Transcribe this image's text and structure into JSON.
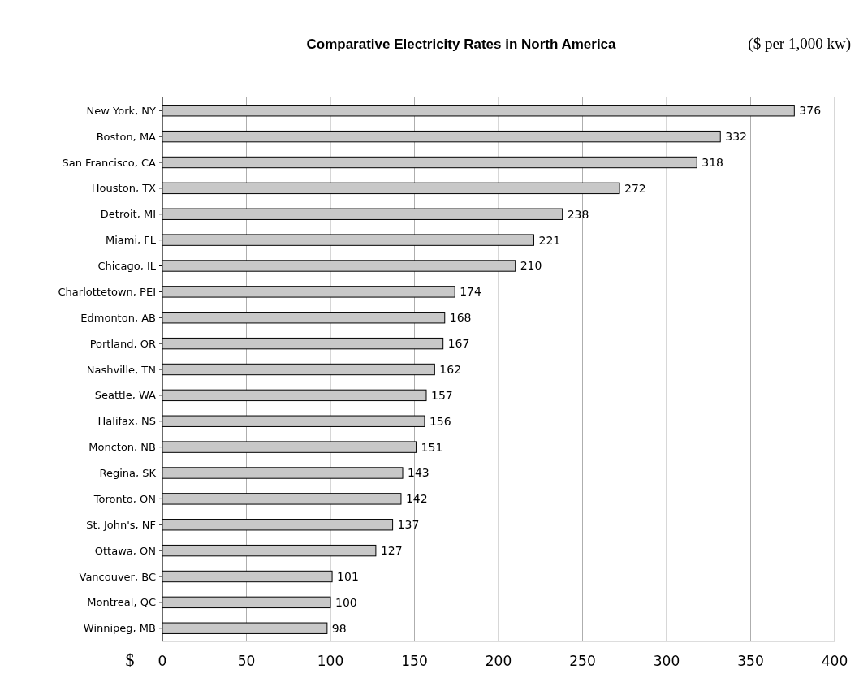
{
  "chart_data": {
    "type": "bar",
    "orientation": "horizontal",
    "title": "Comparative Electricity Rates in North America",
    "subtitle": "($ per 1,000 kw)",
    "xlabel": "$",
    "categories": [
      "New York, NY",
      "Boston, MA",
      "San Francisco, CA",
      "Houston, TX",
      "Detroit, MI",
      "Miami, FL",
      "Chicago, IL",
      "Charlottetown, PEI",
      "Edmonton, AB",
      "Portland, OR",
      "Nashville, TN",
      "Seattle, WA",
      "Halifax, NS",
      "Moncton, NB",
      "Regina, SK",
      "Toronto, ON",
      "St. John's, NF",
      "Ottawa, ON",
      "Vancouver, BC",
      "Montreal, QC",
      "Winnipeg, MB"
    ],
    "values": [
      376,
      332,
      318,
      272,
      238,
      221,
      210,
      174,
      168,
      167,
      162,
      157,
      156,
      151,
      143,
      142,
      137,
      127,
      101,
      100,
      98
    ],
    "color": "#c8c8c8",
    "xlim": [
      0,
      400
    ],
    "xticks": [
      0,
      50,
      100,
      150,
      200,
      250,
      300,
      350,
      400
    ],
    "grid": "x",
    "data_labels": true
  }
}
